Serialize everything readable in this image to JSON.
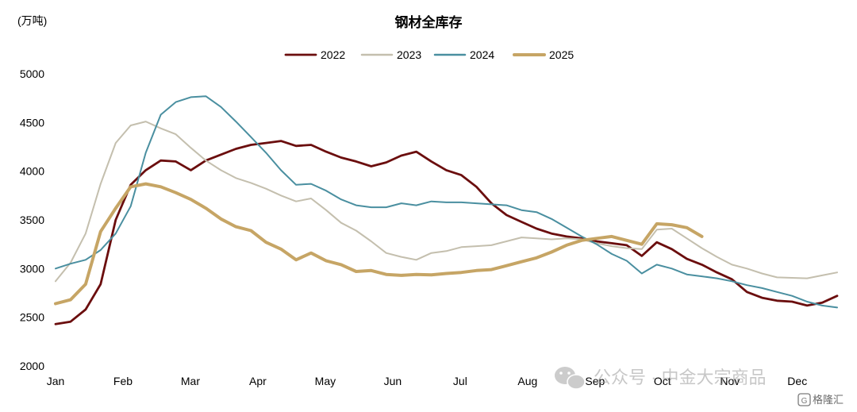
{
  "chart_data": {
    "type": "line",
    "title": "钢材全库存",
    "ylabel": "(万吨)",
    "xlabel": "",
    "ylim": [
      2000,
      5000
    ],
    "yticks": [
      2000,
      2500,
      3000,
      3500,
      4000,
      4500,
      5000
    ],
    "months": [
      "Jan",
      "Feb",
      "Mar",
      "Apr",
      "May",
      "Jun",
      "Jul",
      "Aug",
      "Sep",
      "Oct",
      "Nov",
      "Dec"
    ],
    "x_unit": "week",
    "legend_position": "top-center",
    "grid": false,
    "series": [
      {
        "name": "2022",
        "color": "#6b0e0e",
        "width": 2.8,
        "values": [
          2430,
          2455,
          2580,
          2840,
          3500,
          3860,
          4010,
          4110,
          4100,
          4010,
          4110,
          4170,
          4230,
          4270,
          4290,
          4310,
          4260,
          4270,
          4200,
          4140,
          4100,
          4050,
          4090,
          4160,
          4200,
          4100,
          4010,
          3960,
          3840,
          3670,
          3550,
          3480,
          3410,
          3360,
          3330,
          3310,
          3280,
          3260,
          3240,
          3130,
          3270,
          3200,
          3100,
          3040,
          2960,
          2890,
          2760,
          2700,
          2670,
          2660,
          2620,
          2650,
          2720
        ]
      },
      {
        "name": "2023",
        "color": "#c4bfae",
        "width": 2.0,
        "values": [
          2870,
          3060,
          3360,
          3870,
          4290,
          4470,
          4510,
          4440,
          4380,
          4240,
          4110,
          4010,
          3930,
          3880,
          3820,
          3750,
          3690,
          3720,
          3600,
          3470,
          3390,
          3280,
          3160,
          3120,
          3090,
          3160,
          3180,
          3220,
          3230,
          3240,
          3280,
          3320,
          3310,
          3300,
          3310,
          3300,
          3260,
          3230,
          3210,
          3200,
          3400,
          3410,
          3310,
          3210,
          3120,
          3040,
          3000,
          2950,
          2910,
          2905,
          2900,
          2930,
          2960
        ]
      },
      {
        "name": "2024",
        "color": "#4a8fa0",
        "width": 2.0,
        "values": [
          3000,
          3050,
          3090,
          3190,
          3360,
          3640,
          4190,
          4580,
          4710,
          4760,
          4770,
          4660,
          4510,
          4350,
          4190,
          4010,
          3860,
          3870,
          3800,
          3710,
          3650,
          3630,
          3630,
          3670,
          3650,
          3690,
          3680,
          3680,
          3670,
          3660,
          3650,
          3600,
          3580,
          3510,
          3420,
          3330,
          3250,
          3150,
          3080,
          2950,
          3040,
          3000,
          2940,
          2920,
          2900,
          2870,
          2830,
          2800,
          2760,
          2720,
          2660,
          2620,
          2600
        ]
      },
      {
        "name": "2025",
        "color": "#c6a565",
        "width": 4.0,
        "values": [
          2640,
          2680,
          2840,
          3380,
          3620,
          3840,
          3870,
          3840,
          3780,
          3710,
          3620,
          3510,
          3430,
          3390,
          3270,
          3200,
          3090,
          3160,
          3080,
          3040,
          2970,
          2980,
          2940,
          2930,
          2940,
          2935,
          2950,
          2960,
          2980,
          2990,
          3030,
          3070,
          3110,
          3170,
          3240,
          3290,
          3310,
          3330,
          3290,
          3250,
          3460,
          3450,
          3420,
          3330
        ]
      }
    ]
  },
  "watermark": {
    "text": "公众号 · 中金大宗商品",
    "brand": "格隆汇"
  }
}
